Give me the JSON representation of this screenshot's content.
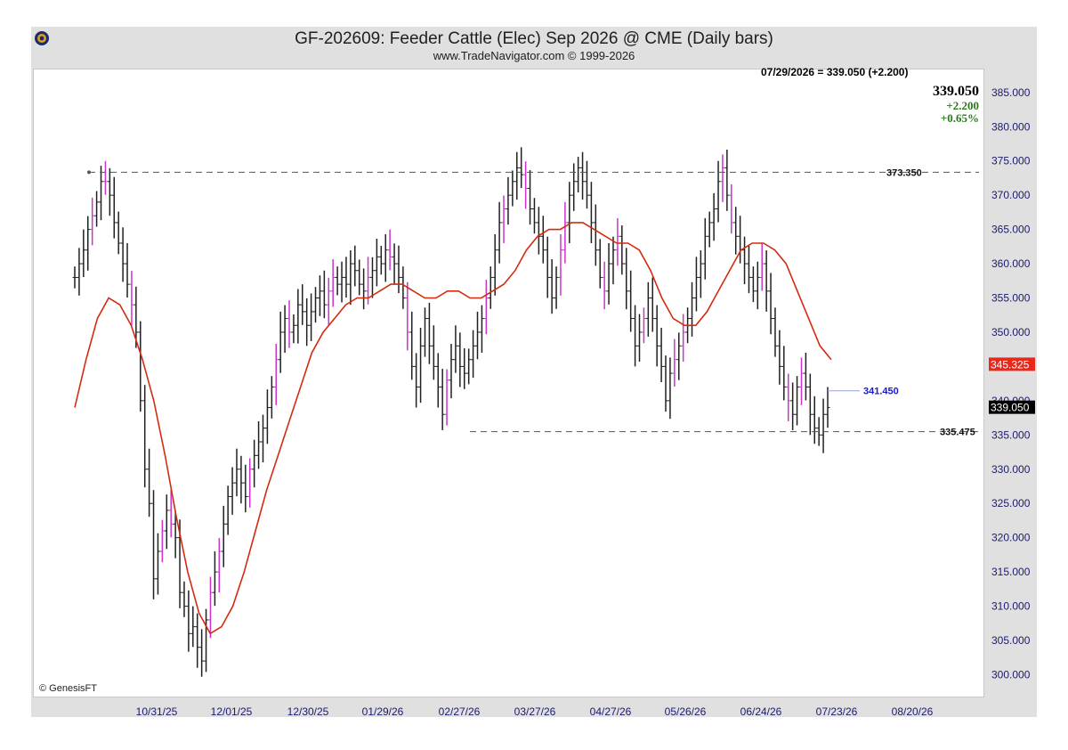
{
  "header": {
    "title": "GF-202609:  Feeder Cattle (Elec) Sep 2026 @ CME  (Daily bars)",
    "subtitle": "www.TradeNavigator.com © 1999-2026",
    "ohlc_readout": "07/29/2026 = 339.050 (+2.200)",
    "last": "339.050",
    "change": "+2.200",
    "change_pct": "+0.65%",
    "copyright": "© GenesisFT"
  },
  "colors": {
    "bars": "#202020",
    "bars_highlight": "#cc33cc",
    "moving_average": "#d42a10",
    "ma_badge": "#e8281a",
    "last_badge": "#000000",
    "level_line": "#555555",
    "level_blue": "#1a1acc",
    "axis_text": "#1a1a6e"
  },
  "chart_data": {
    "type": "line",
    "ylim": [
      297,
      387
    ],
    "y_ticks": [
      "385.000",
      "380.000",
      "375.000",
      "370.000",
      "365.000",
      "360.000",
      "355.000",
      "350.000",
      "345.000",
      "340.000",
      "335.000",
      "330.000",
      "325.000",
      "320.000",
      "315.000",
      "310.000",
      "305.000",
      "300.000"
    ],
    "x_ticks": [
      "10/31/25",
      "12/01/25",
      "12/30/25",
      "01/29/26",
      "02/27/26",
      "03/27/26",
      "04/27/26",
      "05/26/26",
      "06/24/26",
      "07/23/26",
      "08/20/26"
    ],
    "series": [
      {
        "values": [
          358,
          360,
          362,
          365,
          367,
          369,
          372,
          372,
          370,
          366,
          363,
          360,
          357,
          354,
          350,
          340,
          330,
          325,
          314,
          318,
          321,
          324,
          322,
          320,
          312,
          310,
          306,
          307,
          304,
          302,
          308,
          312,
          315,
          318,
          322,
          326,
          328,
          330,
          328,
          326,
          330,
          332,
          334,
          336,
          339,
          342,
          346,
          350,
          352,
          350,
          351,
          354,
          353,
          351,
          353,
          355,
          356,
          354,
          356,
          358,
          357,
          358,
          357,
          360,
          359,
          357,
          356,
          358,
          359,
          361,
          360,
          362,
          361,
          360,
          358,
          355,
          350,
          345,
          342,
          348,
          352,
          348,
          345,
          342,
          338,
          343,
          346,
          348,
          345,
          344,
          346,
          348,
          350,
          352,
          355,
          358,
          362,
          366,
          368,
          370,
          372,
          374,
          373,
          371,
          368,
          366,
          364,
          362,
          358,
          355,
          358,
          362,
          366,
          370,
          372,
          374,
          372,
          370,
          366,
          362,
          358,
          356,
          360,
          362,
          364,
          360,
          356,
          352,
          348,
          350,
          352,
          355,
          352,
          348,
          345,
          340,
          344,
          346,
          348,
          350,
          352,
          355,
          358,
          360,
          364,
          366,
          368,
          372,
          374,
          370,
          366,
          364,
          362,
          360,
          358,
          356,
          358,
          360,
          356,
          352,
          348,
          345,
          342,
          340,
          338,
          342,
          344,
          342,
          338,
          336,
          335,
          338,
          339
        ]
      },
      {
        "name": "",
        "values": [
          339,
          346,
          352,
          355,
          354,
          351,
          346,
          340,
          332,
          323,
          315,
          309,
          306,
          307,
          310,
          315,
          321,
          327,
          332,
          337,
          342,
          347,
          350,
          352,
          354,
          355,
          355,
          356,
          357,
          357,
          356,
          355,
          355,
          356,
          356,
          355,
          355,
          356,
          357,
          359,
          362,
          364,
          365,
          365,
          366,
          366,
          365,
          364,
          363,
          363,
          362,
          359,
          355,
          352,
          351,
          351,
          353,
          356,
          359,
          362,
          363,
          363,
          362,
          360,
          356,
          352,
          348,
          346
        ]
      }
    ],
    "levels": [
      {
        "label": "373.350",
        "value": 373.35,
        "style": "dashed"
      },
      {
        "label": "335.475",
        "value": 335.475,
        "style": "dashed"
      },
      {
        "label": "341.450",
        "value": 341.45,
        "style": "marker"
      }
    ],
    "badges": [
      {
        "label": "345.325",
        "value": 345.325,
        "kind": "moving-average"
      },
      {
        "label": "339.050",
        "value": 339.05,
        "kind": "last"
      }
    ]
  }
}
